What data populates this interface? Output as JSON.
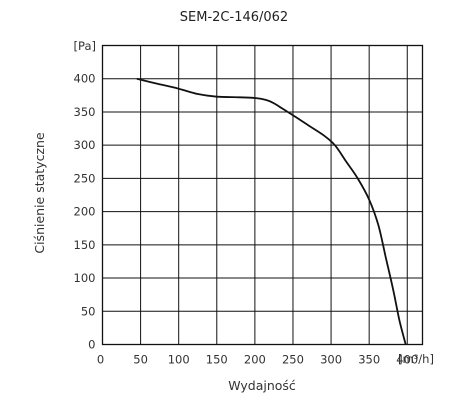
{
  "chart_data": {
    "type": "line",
    "title": "SEM-2C-146/062",
    "xlabel": "Wydajność",
    "ylabel": "Ciśnienie statyczne",
    "x_unit": "[m³/h]",
    "y_unit": "[Pa]",
    "xlim": [
      0,
      420
    ],
    "ylim": [
      0,
      450
    ],
    "x_ticks": [
      0,
      50,
      100,
      150,
      200,
      250,
      300,
      350,
      400
    ],
    "y_ticks": [
      0,
      50,
      100,
      150,
      200,
      250,
      300,
      350,
      400
    ],
    "grid": true,
    "series": [
      {
        "x": [
          45,
          70,
          100,
          125,
          150,
          180,
          200,
          215,
          225,
          235,
          250,
          270,
          290,
          305,
          320,
          335,
          350,
          362,
          372,
          382,
          390,
          398
        ],
        "y": [
          400,
          393,
          385,
          377,
          373,
          372,
          371,
          368,
          363,
          356,
          345,
          330,
          315,
          300,
          275,
          250,
          218,
          180,
          130,
          80,
          35,
          0
        ]
      }
    ]
  }
}
